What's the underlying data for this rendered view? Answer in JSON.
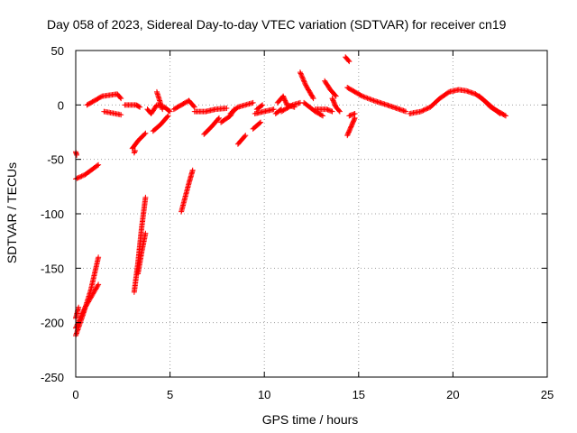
{
  "chart_data": {
    "type": "scatter",
    "title": "Day 058 of 2023, Sidereal Day-to-day VTEC variation (SDTVAR) for receiver cn19",
    "xlabel": "GPS time / hours",
    "ylabel": "SDTVAR / TECUs",
    "xlim": [
      0,
      25
    ],
    "ylim": [
      -250,
      50
    ],
    "xticks": [
      0,
      5,
      10,
      15,
      20,
      25
    ],
    "yticks": [
      -250,
      -200,
      -150,
      -100,
      -50,
      0,
      50
    ],
    "xtick_labels": [
      "0",
      "5",
      "10",
      "15",
      "20",
      "25"
    ],
    "ytick_labels": [
      "-250",
      "-200",
      "-150",
      "-100",
      "-50",
      "0",
      "50"
    ],
    "grid": true,
    "marker": "+",
    "series": [
      {
        "name": "SDTVAR",
        "color": "#ff0000",
        "arcs": [
          [
            [
              0.0,
              -212
            ],
            [
              0.4,
              -192
            ],
            [
              0.8,
              -170
            ],
            [
              1.2,
              -140
            ]
          ],
          [
            [
              0.0,
              -205
            ],
            [
              0.5,
              -186
            ],
            [
              1.2,
              -165
            ]
          ],
          [
            [
              0.0,
              -196
            ],
            [
              0.15,
              -186
            ]
          ],
          [
            [
              0.0,
              -68
            ],
            [
              0.5,
              -64
            ],
            [
              1.2,
              -55
            ]
          ],
          [
            [
              0.0,
              -43
            ],
            [
              0.05,
              -46
            ]
          ],
          [
            [
              0.6,
              0
            ],
            [
              1.0,
              4
            ],
            [
              1.4,
              8
            ],
            [
              2.2,
              10
            ],
            [
              2.4,
              6
            ]
          ],
          [
            [
              1.5,
              -6
            ],
            [
              2.4,
              -9
            ]
          ],
          [
            [
              2.6,
              0
            ],
            [
              3.2,
              0
            ],
            [
              3.4,
              -2
            ]
          ],
          [
            [
              3.0,
              -40
            ],
            [
              3.3,
              -33
            ],
            [
              3.7,
              -26
            ]
          ],
          [
            [
              3.1,
              -44
            ],
            [
              3.15,
              -42
            ]
          ],
          [
            [
              3.1,
              -172
            ],
            [
              3.3,
              -145
            ],
            [
              3.5,
              -112
            ],
            [
              3.7,
              -85
            ]
          ],
          [
            [
              3.3,
              -155
            ],
            [
              3.5,
              -135
            ],
            [
              3.7,
              -118
            ]
          ],
          [
            [
              3.8,
              -4
            ],
            [
              4.0,
              -8
            ],
            [
              4.3,
              0
            ],
            [
              4.7,
              -2
            ],
            [
              5.0,
              -6
            ]
          ],
          [
            [
              4.1,
              -24
            ],
            [
              4.5,
              -18
            ],
            [
              4.9,
              -10
            ]
          ],
          [
            [
              4.3,
              12
            ],
            [
              4.6,
              -4
            ]
          ],
          [
            [
              5.2,
              -4
            ],
            [
              5.6,
              0
            ],
            [
              6.0,
              4
            ],
            [
              6.3,
              -2
            ]
          ],
          [
            [
              5.6,
              -98
            ],
            [
              5.8,
              -85
            ],
            [
              6.0,
              -72
            ],
            [
              6.2,
              -60
            ]
          ],
          [
            [
              6.3,
              -6
            ],
            [
              6.9,
              -6
            ],
            [
              7.4,
              -4
            ],
            [
              8.0,
              -3
            ]
          ],
          [
            [
              6.8,
              -27
            ],
            [
              7.2,
              -20
            ],
            [
              7.6,
              -12
            ]
          ],
          [
            [
              7.7,
              -16
            ],
            [
              8.2,
              -10
            ],
            [
              8.4,
              -4
            ]
          ],
          [
            [
              8.2,
              -8
            ],
            [
              8.6,
              -2
            ],
            [
              9.0,
              0
            ],
            [
              9.4,
              2
            ]
          ],
          [
            [
              8.6,
              -36
            ],
            [
              9.0,
              -28
            ]
          ],
          [
            [
              9.4,
              -22
            ],
            [
              9.8,
              -16
            ]
          ],
          [
            [
              9.5,
              -8
            ],
            [
              10.0,
              -6
            ],
            [
              10.5,
              -4
            ]
          ],
          [
            [
              9.6,
              -4
            ],
            [
              9.9,
              0
            ]
          ],
          [
            [
              10.6,
              -8
            ],
            [
              10.9,
              -4
            ]
          ],
          [
            [
              10.7,
              2
            ],
            [
              11.0,
              8
            ],
            [
              11.2,
              0
            ],
            [
              11.6,
              -2
            ]
          ],
          [
            [
              10.9,
              -6
            ],
            [
              11.5,
              0
            ],
            [
              11.9,
              2
            ]
          ],
          [
            [
              11.9,
              30
            ],
            [
              12.2,
              18
            ],
            [
              12.6,
              6
            ]
          ],
          [
            [
              12.1,
              2
            ],
            [
              12.7,
              -6
            ],
            [
              13.1,
              -10
            ]
          ],
          [
            [
              12.7,
              -4
            ],
            [
              13.3,
              -4
            ],
            [
              13.6,
              -6
            ]
          ],
          [
            [
              13.2,
              22
            ],
            [
              13.5,
              14
            ],
            [
              13.8,
              8
            ]
          ],
          [
            [
              13.6,
              6
            ],
            [
              13.8,
              -2
            ],
            [
              14.0,
              -6
            ]
          ],
          [
            [
              14.3,
              44
            ],
            [
              14.5,
              40
            ]
          ],
          [
            [
              14.4,
              16
            ],
            [
              14.8,
              12
            ],
            [
              15.2,
              8
            ],
            [
              15.8,
              4
            ],
            [
              16.5,
              0
            ],
            [
              17.0,
              -3
            ],
            [
              17.5,
              -6
            ]
          ],
          [
            [
              14.4,
              -28
            ],
            [
              14.6,
              -20
            ],
            [
              14.8,
              -12
            ]
          ],
          [
            [
              14.5,
              -10
            ],
            [
              14.8,
              -8
            ]
          ],
          [
            [
              17.7,
              -8
            ],
            [
              18.3,
              -6
            ],
            [
              18.8,
              -2
            ],
            [
              19.3,
              6
            ],
            [
              19.8,
              12
            ],
            [
              20.3,
              14
            ],
            [
              20.7,
              13
            ],
            [
              21.2,
              10
            ],
            [
              21.6,
              5
            ],
            [
              22.0,
              -2
            ],
            [
              22.4,
              -6
            ],
            [
              22.8,
              -10
            ]
          ],
          [
            [
              21.4,
              8
            ],
            [
              21.8,
              2
            ],
            [
              22.2,
              -4
            ],
            [
              22.5,
              -8
            ]
          ]
        ]
      }
    ]
  }
}
